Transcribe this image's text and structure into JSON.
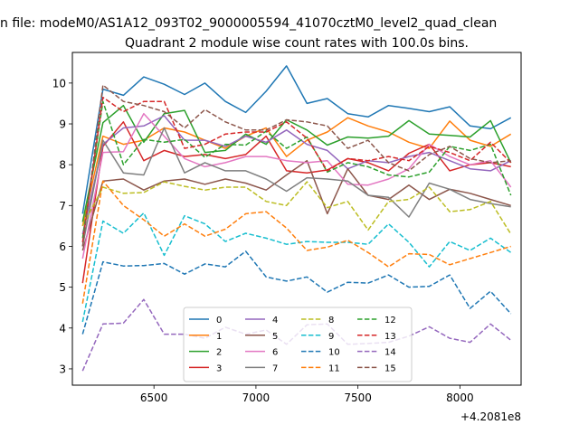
{
  "figure": {
    "suptitle": "n file: modeM0/AS1A12_093T02_9000005594_41070cztM0_level2_quad_clean",
    "title": "Quadrant 2 module wise count rates with 100.0s bins."
  },
  "chart_data": {
    "type": "line",
    "title": "Quadrant 2 module wise count rates with 100.0s bins.",
    "xlabel": "",
    "ylabel": "",
    "x_offset_label": "+4.2081e8",
    "xlim": [
      6100,
      8300
    ],
    "ylim": [
      2.6,
      10.75
    ],
    "xticks": [
      6500,
      7000,
      7500,
      8000
    ],
    "yticks": [
      3,
      4,
      5,
      6,
      7,
      8,
      9,
      10
    ],
    "grid": false,
    "legend": {
      "location": "lower center",
      "ncol": 4
    },
    "x": [
      6150,
      6250,
      6350,
      6450,
      6550,
      6650,
      6750,
      6850,
      6950,
      7050,
      7150,
      7250,
      7350,
      7450,
      7550,
      7650,
      7750,
      7850,
      7950,
      8050,
      8150,
      8250
    ],
    "series": [
      {
        "name": "0",
        "color": "#1f77b4",
        "style": "solid",
        "values": [
          6.8,
          9.85,
          9.7,
          10.15,
          9.97,
          9.72,
          10.0,
          9.55,
          9.28,
          9.8,
          10.42,
          9.5,
          9.62,
          9.25,
          9.17,
          9.45,
          9.38,
          9.3,
          9.42,
          8.95,
          8.88,
          9.15
        ]
      },
      {
        "name": "1",
        "color": "#ff7f0e",
        "style": "solid",
        "values": [
          6.5,
          8.7,
          8.5,
          8.6,
          8.9,
          8.8,
          8.6,
          8.4,
          8.7,
          8.9,
          8.2,
          8.6,
          8.8,
          9.15,
          8.95,
          8.8,
          8.55,
          8.4,
          9.07,
          8.6,
          8.45,
          8.75
        ]
      },
      {
        "name": "2",
        "color": "#2ca02c",
        "style": "solid",
        "values": [
          6.6,
          9.03,
          9.45,
          8.55,
          9.25,
          9.33,
          8.3,
          8.35,
          8.75,
          8.5,
          9.1,
          8.85,
          8.48,
          8.68,
          8.65,
          8.7,
          9.08,
          8.75,
          8.72,
          8.68,
          9.08,
          8.05
        ]
      },
      {
        "name": "3",
        "color": "#d62728",
        "style": "solid",
        "values": [
          5.1,
          8.45,
          9.05,
          8.1,
          8.35,
          8.2,
          8.25,
          8.15,
          8.25,
          8.7,
          7.85,
          7.8,
          7.87,
          8.15,
          8.05,
          7.85,
          8.28,
          8.5,
          7.85,
          8.0,
          8.05,
          7.95
        ]
      },
      {
        "name": "4",
        "color": "#9467bd",
        "style": "solid",
        "values": [
          6.3,
          8.5,
          8.9,
          8.95,
          9.2,
          8.6,
          8.6,
          8.45,
          8.7,
          8.55,
          8.85,
          8.5,
          8.35,
          7.9,
          8.1,
          8.05,
          8.2,
          8.3,
          8.1,
          7.9,
          7.85,
          8.1
        ]
      },
      {
        "name": "5",
        "color": "#8c564b",
        "style": "solid",
        "values": [
          5.9,
          7.6,
          7.65,
          7.38,
          7.6,
          7.65,
          7.52,
          7.65,
          7.55,
          7.38,
          7.75,
          8.1,
          6.8,
          7.9,
          7.25,
          7.15,
          7.5,
          7.15,
          7.4,
          7.3,
          7.15,
          7.0
        ]
      },
      {
        "name": "6",
        "color": "#e377c2",
        "style": "solid",
        "values": [
          5.7,
          8.3,
          8.32,
          9.25,
          8.7,
          8.15,
          7.95,
          8.05,
          8.2,
          8.2,
          8.1,
          8.05,
          8.1,
          7.52,
          7.5,
          7.65,
          7.9,
          8.5,
          8.2,
          8.0,
          8.1,
          7.45
        ]
      },
      {
        "name": "7",
        "color": "#7f7f7f",
        "style": "solid",
        "values": [
          6.0,
          8.6,
          7.8,
          7.75,
          8.9,
          7.8,
          8.05,
          7.85,
          7.85,
          7.65,
          7.35,
          7.68,
          7.65,
          7.6,
          7.25,
          7.2,
          6.72,
          7.55,
          7.4,
          7.15,
          7.05,
          6.97
        ]
      },
      {
        "name": "8",
        "color": "#bcbd22",
        "style": "dashed",
        "values": [
          6.5,
          7.45,
          7.3,
          7.32,
          7.58,
          7.47,
          7.38,
          7.45,
          7.45,
          7.1,
          7.0,
          7.58,
          6.95,
          7.1,
          6.4,
          7.1,
          7.15,
          7.45,
          6.85,
          6.9,
          7.1,
          6.3
        ]
      },
      {
        "name": "9",
        "color": "#17becf",
        "style": "dashed",
        "values": [
          4.15,
          6.62,
          6.32,
          6.82,
          5.78,
          6.75,
          6.55,
          6.12,
          6.32,
          6.2,
          6.05,
          6.12,
          6.1,
          6.1,
          6.05,
          6.55,
          6.1,
          5.5,
          6.12,
          5.9,
          6.2,
          5.85
        ]
      },
      {
        "name": "10",
        "color": "#1f77b4",
        "style": "dashed",
        "values": [
          3.85,
          5.62,
          5.52,
          5.53,
          5.58,
          5.32,
          5.57,
          5.5,
          5.88,
          5.25,
          5.15,
          5.25,
          4.88,
          5.12,
          5.1,
          5.3,
          5.0,
          5.02,
          5.3,
          4.48,
          4.9,
          4.35
        ]
      },
      {
        "name": "11",
        "color": "#ff7f0e",
        "style": "dashed",
        "values": [
          4.6,
          7.6,
          7.0,
          6.65,
          6.25,
          6.55,
          6.25,
          6.42,
          6.8,
          6.85,
          6.45,
          5.9,
          5.98,
          6.15,
          5.85,
          5.5,
          5.82,
          5.8,
          5.55,
          5.7,
          5.85,
          6.0
        ]
      },
      {
        "name": "12",
        "color": "#2ca02c",
        "style": "dashed",
        "values": [
          6.2,
          9.55,
          8.0,
          8.62,
          8.55,
          8.62,
          8.18,
          8.5,
          8.48,
          8.82,
          8.4,
          8.68,
          7.82,
          8.05,
          7.95,
          7.75,
          7.7,
          7.82,
          8.45,
          8.35,
          8.5,
          7.25
        ]
      },
      {
        "name": "13",
        "color": "#d62728",
        "style": "dashed",
        "values": [
          6.1,
          9.65,
          9.3,
          9.55,
          9.55,
          8.4,
          8.5,
          8.75,
          8.8,
          8.8,
          9.05,
          8.65,
          7.85,
          8.15,
          8.1,
          8.2,
          8.1,
          8.45,
          8.3,
          8.1,
          8.55,
          8.05
        ]
      },
      {
        "name": "14",
        "color": "#9467bd",
        "style": "dashed",
        "values": [
          2.95,
          4.1,
          4.12,
          4.7,
          3.85,
          3.85,
          3.75,
          4.02,
          3.85,
          3.95,
          3.6,
          4.08,
          4.1,
          3.6,
          3.62,
          3.65,
          3.8,
          4.03,
          3.75,
          3.65,
          4.1,
          3.7
        ]
      },
      {
        "name": "15",
        "color": "#8c564b",
        "style": "dashed",
        "values": [
          6.0,
          9.95,
          9.55,
          9.45,
          9.3,
          8.9,
          9.35,
          9.05,
          8.85,
          8.85,
          9.1,
          9.05,
          8.95,
          8.4,
          8.6,
          8.05,
          7.85,
          8.25,
          8.45,
          8.15,
          8.05,
          8.1
        ]
      }
    ]
  }
}
